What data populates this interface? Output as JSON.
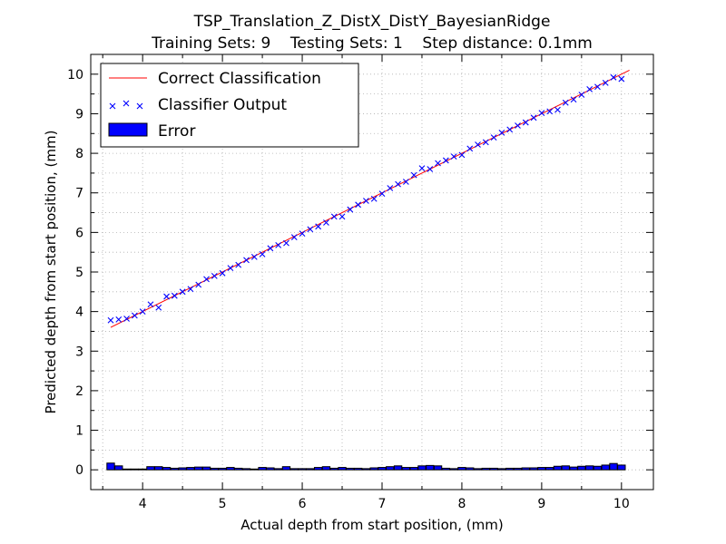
{
  "chart_data": {
    "type": "scatter",
    "title": "TSP_Translation_Z_DistX_DistY_BayesianRidge",
    "subtitle": "Training Sets: 9    Testing Sets: 1    Step distance: 0.1mm",
    "xlabel": "Actual depth from start position, (mm)",
    "ylabel": "Predicted depth from start position, (mm)",
    "xlim": [
      3.35,
      10.4
    ],
    "ylim": [
      -0.5,
      10.5
    ],
    "xticks": [
      "4",
      "5",
      "6",
      "7",
      "8",
      "9",
      "10"
    ],
    "yticks": [
      "0",
      "1",
      "2",
      "3",
      "4",
      "5",
      "6",
      "7",
      "8",
      "9",
      "10"
    ],
    "grid": true,
    "legend": {
      "placement": "top-left",
      "entries": [
        "Correct Classification",
        "Classifier Output",
        "Error"
      ]
    },
    "colors": {
      "correct_line": "#ff0000",
      "classifier_marker": "#0000ff",
      "error_bar": "#0000ff"
    },
    "series": [
      {
        "name": "Correct Classification",
        "type": "line",
        "x": [
          3.6,
          10.1
        ],
        "y": [
          3.6,
          10.1
        ]
      },
      {
        "name": "Classifier Output",
        "type": "scatter",
        "marker": "x",
        "x": [
          3.6,
          3.7,
          3.8,
          3.9,
          4.0,
          4.1,
          4.2,
          4.3,
          4.4,
          4.5,
          4.6,
          4.7,
          4.8,
          4.9,
          5.0,
          5.1,
          5.2,
          5.3,
          5.4,
          5.5,
          5.6,
          5.7,
          5.8,
          5.9,
          6.0,
          6.1,
          6.2,
          6.3,
          6.4,
          6.5,
          6.6,
          6.7,
          6.8,
          6.9,
          7.0,
          7.1,
          7.2,
          7.3,
          7.4,
          7.5,
          7.6,
          7.7,
          7.8,
          7.9,
          8.0,
          8.1,
          8.2,
          8.3,
          8.4,
          8.5,
          8.6,
          8.7,
          8.8,
          8.9,
          9.0,
          9.1,
          9.2,
          9.3,
          9.4,
          9.5,
          9.6,
          9.7,
          9.8,
          9.9,
          10.0
        ],
        "y": [
          3.78,
          3.8,
          3.82,
          3.9,
          4.0,
          4.18,
          4.1,
          4.38,
          4.4,
          4.5,
          4.57,
          4.68,
          4.82,
          4.9,
          4.97,
          5.1,
          5.18,
          5.3,
          5.38,
          5.45,
          5.6,
          5.68,
          5.73,
          5.88,
          5.97,
          6.08,
          6.15,
          6.25,
          6.4,
          6.4,
          6.58,
          6.7,
          6.8,
          6.85,
          6.98,
          7.12,
          7.22,
          7.28,
          7.45,
          7.62,
          7.6,
          7.75,
          7.82,
          7.92,
          7.96,
          8.12,
          8.22,
          8.28,
          8.4,
          8.52,
          8.6,
          8.7,
          8.78,
          8.9,
          9.02,
          9.06,
          9.1,
          9.28,
          9.36,
          9.48,
          9.62,
          9.68,
          9.78,
          9.92,
          9.88
        ]
      },
      {
        "name": "Error",
        "type": "bar",
        "x": [
          3.6,
          3.7,
          3.8,
          3.9,
          4.0,
          4.1,
          4.2,
          4.3,
          4.4,
          4.5,
          4.6,
          4.7,
          4.8,
          4.9,
          5.0,
          5.1,
          5.2,
          5.3,
          5.4,
          5.5,
          5.6,
          5.7,
          5.8,
          5.9,
          6.0,
          6.1,
          6.2,
          6.3,
          6.4,
          6.5,
          6.6,
          6.7,
          6.8,
          6.9,
          7.0,
          7.1,
          7.2,
          7.3,
          7.4,
          7.5,
          7.6,
          7.7,
          7.8,
          7.9,
          8.0,
          8.1,
          8.2,
          8.3,
          8.4,
          8.5,
          8.6,
          8.7,
          8.8,
          8.9,
          9.0,
          9.1,
          9.2,
          9.3,
          9.4,
          9.5,
          9.6,
          9.7,
          9.8,
          9.9,
          10.0
        ],
        "values": [
          0.17,
          0.1,
          0.02,
          0.02,
          0.02,
          0.08,
          0.08,
          0.06,
          0.04,
          0.05,
          0.06,
          0.07,
          0.07,
          0.04,
          0.04,
          0.06,
          0.04,
          0.03,
          0.02,
          0.06,
          0.05,
          0.03,
          0.08,
          0.03,
          0.03,
          0.03,
          0.06,
          0.08,
          0.04,
          0.06,
          0.04,
          0.04,
          0.03,
          0.05,
          0.06,
          0.08,
          0.1,
          0.06,
          0.06,
          0.1,
          0.11,
          0.1,
          0.04,
          0.03,
          0.06,
          0.05,
          0.03,
          0.04,
          0.04,
          0.03,
          0.04,
          0.04,
          0.05,
          0.05,
          0.06,
          0.06,
          0.09,
          0.1,
          0.07,
          0.09,
          0.1,
          0.09,
          0.12,
          0.16,
          0.12
        ]
      }
    ]
  }
}
